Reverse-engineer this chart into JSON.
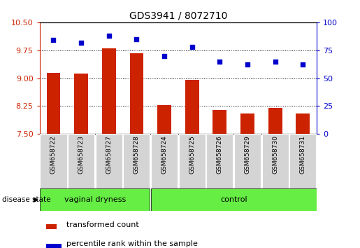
{
  "title": "GDS3941 / 8072710",
  "samples": [
    "GSM658722",
    "GSM658723",
    "GSM658727",
    "GSM658728",
    "GSM658724",
    "GSM658725",
    "GSM658726",
    "GSM658729",
    "GSM658730",
    "GSM658731"
  ],
  "bar_values": [
    9.15,
    9.12,
    9.8,
    9.67,
    8.28,
    8.95,
    8.15,
    8.05,
    8.2,
    8.05
  ],
  "scatter_values": [
    84,
    82,
    88,
    85,
    70,
    78,
    65,
    62,
    65,
    62
  ],
  "bar_color": "#cc2200",
  "scatter_color": "#0000cc",
  "ylim_left": [
    7.5,
    10.5
  ],
  "ylim_right": [
    0,
    100
  ],
  "yticks_left": [
    7.5,
    8.25,
    9.0,
    9.75,
    10.5
  ],
  "yticks_right": [
    0,
    25,
    50,
    75,
    100
  ],
  "grid_values": [
    8.25,
    9.0,
    9.75
  ],
  "group1_label": "vaginal dryness",
  "group2_label": "control",
  "group1_count": 4,
  "group2_count": 6,
  "disease_state_label": "disease state",
  "legend_bar_label": "transformed count",
  "legend_scatter_label": "percentile rank within the sample",
  "bar_color_left_axis": "#cc2200",
  "scatter_color_right_axis": "#0000cc",
  "bar_bottom": 7.5,
  "group_bg_color": "#66ee44",
  "xtick_bg_color": "#d4d4d4",
  "fig_width": 5.15,
  "fig_height": 3.54,
  "dpi": 100
}
